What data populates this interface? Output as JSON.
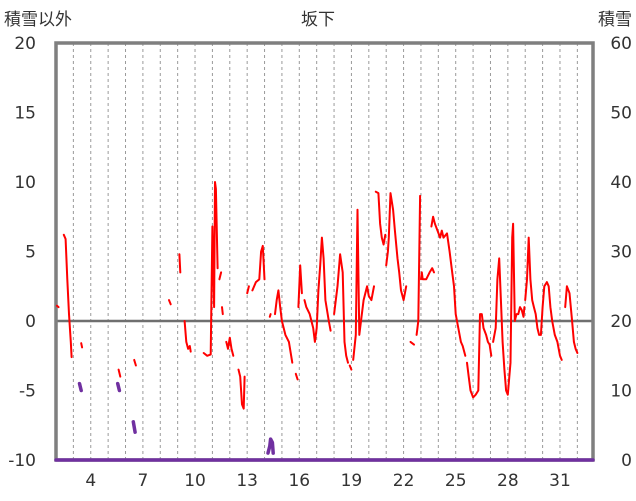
{
  "chart_data": {
    "type": "line",
    "title": "坂下",
    "ylabel_left": "積雪以外",
    "ylabel_right": "積雪",
    "x_range": [
      2.0,
      32.9
    ],
    "ylim_left": [
      -10,
      20
    ],
    "ylim_right": [
      0,
      60
    ],
    "left_ticks": [
      "20",
      "15",
      "10",
      "5",
      "0",
      "-5",
      "-10"
    ],
    "right_ticks": [
      "60",
      "50",
      "40",
      "30",
      "20",
      "10",
      "0"
    ],
    "x_ticks": [
      {
        "x": 4,
        "label": "4"
      },
      {
        "x": 7,
        "label": "7"
      },
      {
        "x": 10,
        "label": "10"
      },
      {
        "x": 13,
        "label": "13"
      },
      {
        "x": 16,
        "label": "16"
      },
      {
        "x": 19,
        "label": "19"
      },
      {
        "x": 22,
        "label": "22"
      },
      {
        "x": 25,
        "label": "25"
      },
      {
        "x": 28,
        "label": "28"
      },
      {
        "x": 31,
        "label": "31"
      }
    ],
    "zero_line": 0,
    "grid": "vertical-dashed-daily",
    "series": [
      {
        "color": "#ff0000",
        "axis": "left",
        "segments": [
          [
            [
              2.05,
              1.1
            ],
            [
              2.15,
              1.0
            ]
          ],
          [
            [
              2.45,
              6.2
            ],
            [
              2.55,
              5.9
            ],
            [
              2.65,
              3.0
            ],
            [
              2.75,
              0.5
            ],
            [
              2.85,
              -1.5
            ],
            [
              2.9,
              -2.6
            ]
          ],
          [
            [
              3.45,
              -1.6
            ],
            [
              3.5,
              -1.9
            ]
          ],
          [
            [
              5.6,
              -3.5
            ],
            [
              5.7,
              -4.0
            ]
          ],
          [
            [
              6.5,
              -2.8
            ],
            [
              6.6,
              -3.2
            ]
          ],
          [
            [
              8.5,
              1.5
            ],
            [
              8.6,
              1.2
            ]
          ],
          [
            [
              9.1,
              4.8
            ],
            [
              9.15,
              3.5
            ]
          ],
          [
            [
              9.4,
              0.0
            ],
            [
              9.5,
              -1.5
            ],
            [
              9.6,
              -2.0
            ],
            [
              9.7,
              -1.8
            ],
            [
              9.75,
              -2.2
            ]
          ],
          [
            [
              10.5,
              -2.3
            ],
            [
              10.7,
              -2.5
            ],
            [
              10.9,
              -2.4
            ],
            [
              11.0,
              6.8
            ],
            [
              11.1,
              1.0
            ],
            [
              11.15,
              10.0
            ],
            [
              11.2,
              9.5
            ],
            [
              11.3,
              3.8
            ]
          ],
          [
            [
              11.4,
              3.0
            ],
            [
              11.5,
              3.5
            ]
          ],
          [
            [
              11.55,
              1.0
            ],
            [
              11.6,
              0.5
            ]
          ],
          [
            [
              11.8,
              -1.5
            ],
            [
              11.9,
              -2.0
            ],
            [
              12.0,
              -1.2
            ],
            [
              12.1,
              -2.0
            ],
            [
              12.2,
              -2.5
            ]
          ],
          [
            [
              12.5,
              -3.5
            ],
            [
              12.6,
              -4.0
            ],
            [
              12.7,
              -6.0
            ],
            [
              12.8,
              -6.3
            ],
            [
              12.85,
              -4.0
            ]
          ],
          [
            [
              13.0,
              2.0
            ],
            [
              13.1,
              2.5
            ]
          ],
          [
            [
              13.3,
              2.2
            ],
            [
              13.5,
              2.8
            ],
            [
              13.7,
              3.0
            ],
            [
              13.8,
              5.0
            ],
            [
              13.9,
              5.4
            ],
            [
              14.0,
              3.0
            ]
          ],
          [
            [
              14.3,
              0.3
            ],
            [
              14.35,
              0.5
            ]
          ],
          [
            [
              14.6,
              0.5
            ],
            [
              14.7,
              1.5
            ],
            [
              14.8,
              2.2
            ],
            [
              14.9,
              1.0
            ],
            [
              15.0,
              0.0
            ],
            [
              15.2,
              -1.0
            ],
            [
              15.4,
              -1.5
            ],
            [
              15.6,
              -3.0
            ]
          ],
          [
            [
              15.8,
              -3.8
            ],
            [
              15.9,
              -4.2
            ]
          ],
          [
            [
              15.95,
              1.0
            ],
            [
              16.05,
              4.0
            ],
            [
              16.15,
              2.0
            ]
          ],
          [
            [
              16.3,
              1.5
            ],
            [
              16.4,
              1.0
            ],
            [
              16.6,
              0.5
            ],
            [
              16.8,
              -0.5
            ],
            [
              16.9,
              -1.5
            ],
            [
              17.0,
              -0.5
            ],
            [
              17.1,
              2.2
            ],
            [
              17.2,
              4.0
            ],
            [
              17.3,
              6.0
            ],
            [
              17.4,
              4.5
            ],
            [
              17.5,
              1.5
            ],
            [
              17.7,
              0.0
            ],
            [
              17.8,
              -0.7
            ]
          ],
          [
            [
              18.0,
              0.5
            ],
            [
              18.2,
              2.5
            ],
            [
              18.35,
              4.8
            ],
            [
              18.5,
              3.5
            ],
            [
              18.6,
              -1.5
            ],
            [
              18.7,
              -2.5
            ],
            [
              18.8,
              -3.0
            ]
          ],
          [
            [
              18.9,
              -3.2
            ],
            [
              19.0,
              -3.5
            ]
          ],
          [
            [
              19.1,
              -2.8
            ],
            [
              19.25,
              -1.0
            ],
            [
              19.35,
              8.0
            ],
            [
              19.45,
              -1.0
            ],
            [
              19.55,
              0.0
            ],
            [
              19.7,
              1.5
            ],
            [
              19.9,
              2.5
            ],
            [
              20.0,
              1.8
            ],
            [
              20.15,
              1.5
            ],
            [
              20.3,
              2.5
            ]
          ],
          [
            [
              20.4,
              9.3
            ],
            [
              20.55,
              9.2
            ],
            [
              20.65,
              7.0
            ],
            [
              20.75,
              6.0
            ],
            [
              20.85,
              5.5
            ],
            [
              20.95,
              6.2
            ]
          ],
          [
            [
              21.0,
              4.0
            ],
            [
              21.1,
              5.0
            ],
            [
              21.15,
              6.0
            ],
            [
              21.25,
              9.2
            ],
            [
              21.4,
              8.0
            ],
            [
              21.5,
              6.5
            ],
            [
              21.65,
              4.5
            ],
            [
              21.75,
              3.5
            ],
            [
              21.85,
              2.2
            ],
            [
              22.0,
              1.5
            ],
            [
              22.15,
              2.5
            ]
          ],
          [
            [
              22.4,
              -1.5
            ],
            [
              22.6,
              -1.7
            ]
          ],
          [
            [
              22.75,
              -1.0
            ],
            [
              22.85,
              0.0
            ],
            [
              22.95,
              9.0
            ]
          ],
          [
            [
              23.0,
              3.0
            ],
            [
              23.05,
              3.5
            ],
            [
              23.1,
              3.0
            ],
            [
              23.3,
              3.0
            ],
            [
              23.5,
              3.5
            ],
            [
              23.65,
              3.8
            ],
            [
              23.75,
              3.5
            ]
          ],
          [
            [
              23.6,
              6.8
            ],
            [
              23.7,
              7.5
            ],
            [
              23.8,
              7.0
            ],
            [
              23.95,
              6.5
            ],
            [
              24.1,
              6.0
            ],
            [
              24.2,
              6.5
            ],
            [
              24.3,
              6.0
            ],
            [
              24.5,
              6.3
            ],
            [
              24.65,
              5.0
            ],
            [
              24.8,
              3.5
            ],
            [
              24.9,
              2.5
            ],
            [
              25.0,
              0.5
            ],
            [
              25.15,
              -0.5
            ],
            [
              25.3,
              -1.5
            ],
            [
              25.4,
              -1.8
            ],
            [
              25.55,
              -2.5
            ]
          ],
          [
            [
              25.65,
              -3.0
            ],
            [
              25.75,
              -4.0
            ],
            [
              25.85,
              -5.0
            ],
            [
              26.0,
              -5.5
            ],
            [
              26.15,
              -5.3
            ],
            [
              26.3,
              -5.0
            ],
            [
              26.4,
              0.5
            ],
            [
              26.5,
              0.5
            ],
            [
              26.6,
              -0.5
            ],
            [
              26.75,
              -1.0
            ],
            [
              26.85,
              -1.5
            ],
            [
              26.95,
              -1.7
            ],
            [
              27.05,
              -2.5
            ]
          ],
          [
            [
              27.15,
              -1.5
            ],
            [
              27.3,
              -0.5
            ],
            [
              27.4,
              3.0
            ],
            [
              27.5,
              4.5
            ],
            [
              27.6,
              1.5
            ],
            [
              27.7,
              -1.5
            ],
            [
              27.8,
              -3.5
            ],
            [
              27.9,
              -5.0
            ],
            [
              28.0,
              -5.3
            ],
            [
              28.15,
              -3.0
            ],
            [
              28.25,
              6.0
            ],
            [
              28.3,
              7.0
            ],
            [
              28.4,
              0.0
            ],
            [
              28.5,
              0.5
            ],
            [
              28.6,
              0.5
            ],
            [
              28.7,
              1.0
            ],
            [
              28.8,
              0.8
            ],
            [
              28.9,
              0.3
            ],
            [
              28.95,
              1.0
            ]
          ],
          [
            [
              29.0,
              1.5
            ],
            [
              29.1,
              3.0
            ],
            [
              29.2,
              6.0
            ],
            [
              29.3,
              3.0
            ],
            [
              29.4,
              1.5
            ],
            [
              29.5,
              1.0
            ],
            [
              29.6,
              0.5
            ],
            [
              29.7,
              -0.5
            ],
            [
              29.8,
              -1.0
            ],
            [
              29.9,
              -1.0
            ],
            [
              30.0,
              1.0
            ],
            [
              30.1,
              2.5
            ],
            [
              30.25,
              2.8
            ],
            [
              30.35,
              2.5
            ],
            [
              30.45,
              1.0
            ],
            [
              30.55,
              0.0
            ],
            [
              30.7,
              -1.0
            ],
            [
              30.85,
              -1.5
            ],
            [
              31.0,
              -2.5
            ],
            [
              31.1,
              -2.8
            ]
          ],
          [
            [
              31.3,
              1.0
            ],
            [
              31.4,
              2.5
            ],
            [
              31.55,
              2.0
            ],
            [
              31.7,
              0.0
            ],
            [
              31.8,
              -1.5
            ],
            [
              31.9,
              -2.0
            ],
            [
              32.0,
              -2.3
            ]
          ]
        ]
      },
      {
        "color": "#7030a0",
        "axis": "right",
        "segments": [
          [
            [
              3.35,
              11.0
            ],
            [
              3.45,
              10.0
            ]
          ],
          [
            [
              5.55,
              11.0
            ],
            [
              5.65,
              10.0
            ]
          ],
          [
            [
              6.45,
              5.5
            ],
            [
              6.55,
              4.0
            ]
          ],
          [
            [
              14.2,
              1.0
            ],
            [
              14.3,
              2.0
            ],
            [
              14.35,
              3.0
            ],
            [
              14.45,
              2.5
            ],
            [
              14.5,
              1.0
            ]
          ],
          [
            [
              2.0,
              0
            ],
            [
              32.9,
              0
            ]
          ]
        ]
      }
    ]
  }
}
